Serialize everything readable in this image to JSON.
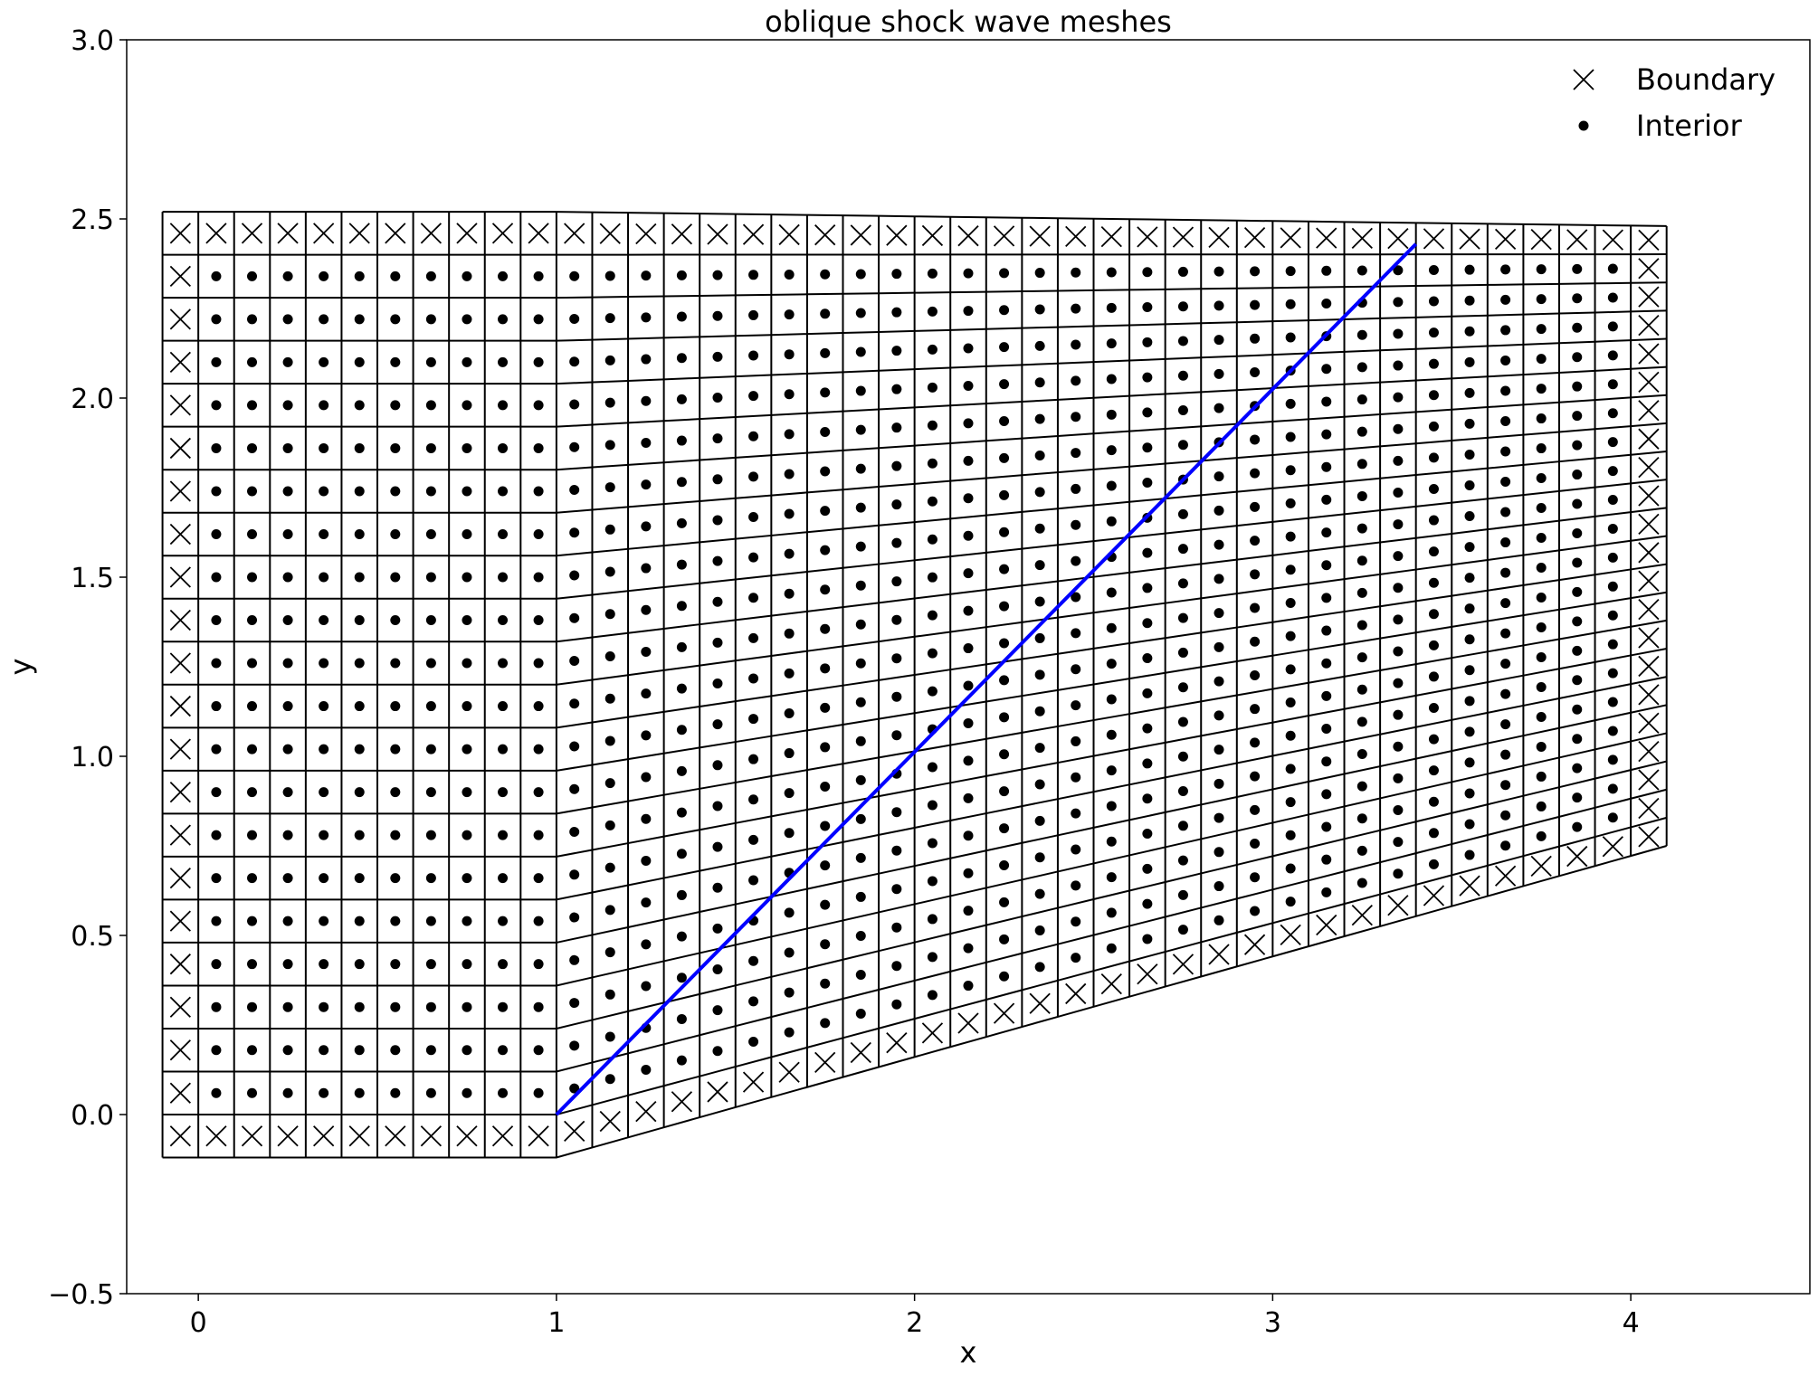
{
  "chart_data": {
    "type": "scatter",
    "title": "oblique shock wave meshes",
    "xlabel": "x",
    "ylabel": "y",
    "xlim": [
      -0.2,
      4.5
    ],
    "ylim": [
      -0.5,
      3.0
    ],
    "xticks": [
      0,
      1,
      2,
      3,
      4
    ],
    "yticks": [
      -0.5,
      0.0,
      0.5,
      1.0,
      1.5,
      2.0,
      2.5,
      3.0
    ],
    "grid": false,
    "legend_position": "top-right",
    "legend": [
      {
        "label": "Boundary",
        "marker": "x"
      },
      {
        "label": "Interior",
        "marker": "circle"
      }
    ],
    "mesh": {
      "cell_size": 0.1,
      "upstream_x_range": [
        -0.1,
        1.0
      ],
      "downstream_x_range": [
        1.0,
        4.1
      ],
      "bottom_wall": {
        "x0": 1.0,
        "y0": -0.12,
        "x1": 4.1,
        "y1": 0.75
      },
      "top_wall": {
        "x0": 1.0,
        "y0": 2.52,
        "x1": 4.1,
        "y1": 2.48
      },
      "upstream_y_range": [
        -0.12,
        2.52
      ],
      "rows": 22
    },
    "shock_line": {
      "x": [
        1.0,
        3.4
      ],
      "y": [
        0.0,
        2.43
      ],
      "color": "#0000ff"
    },
    "colors": {
      "mesh": "#000000",
      "shock": "#0000ff",
      "markers": "#000000"
    }
  }
}
